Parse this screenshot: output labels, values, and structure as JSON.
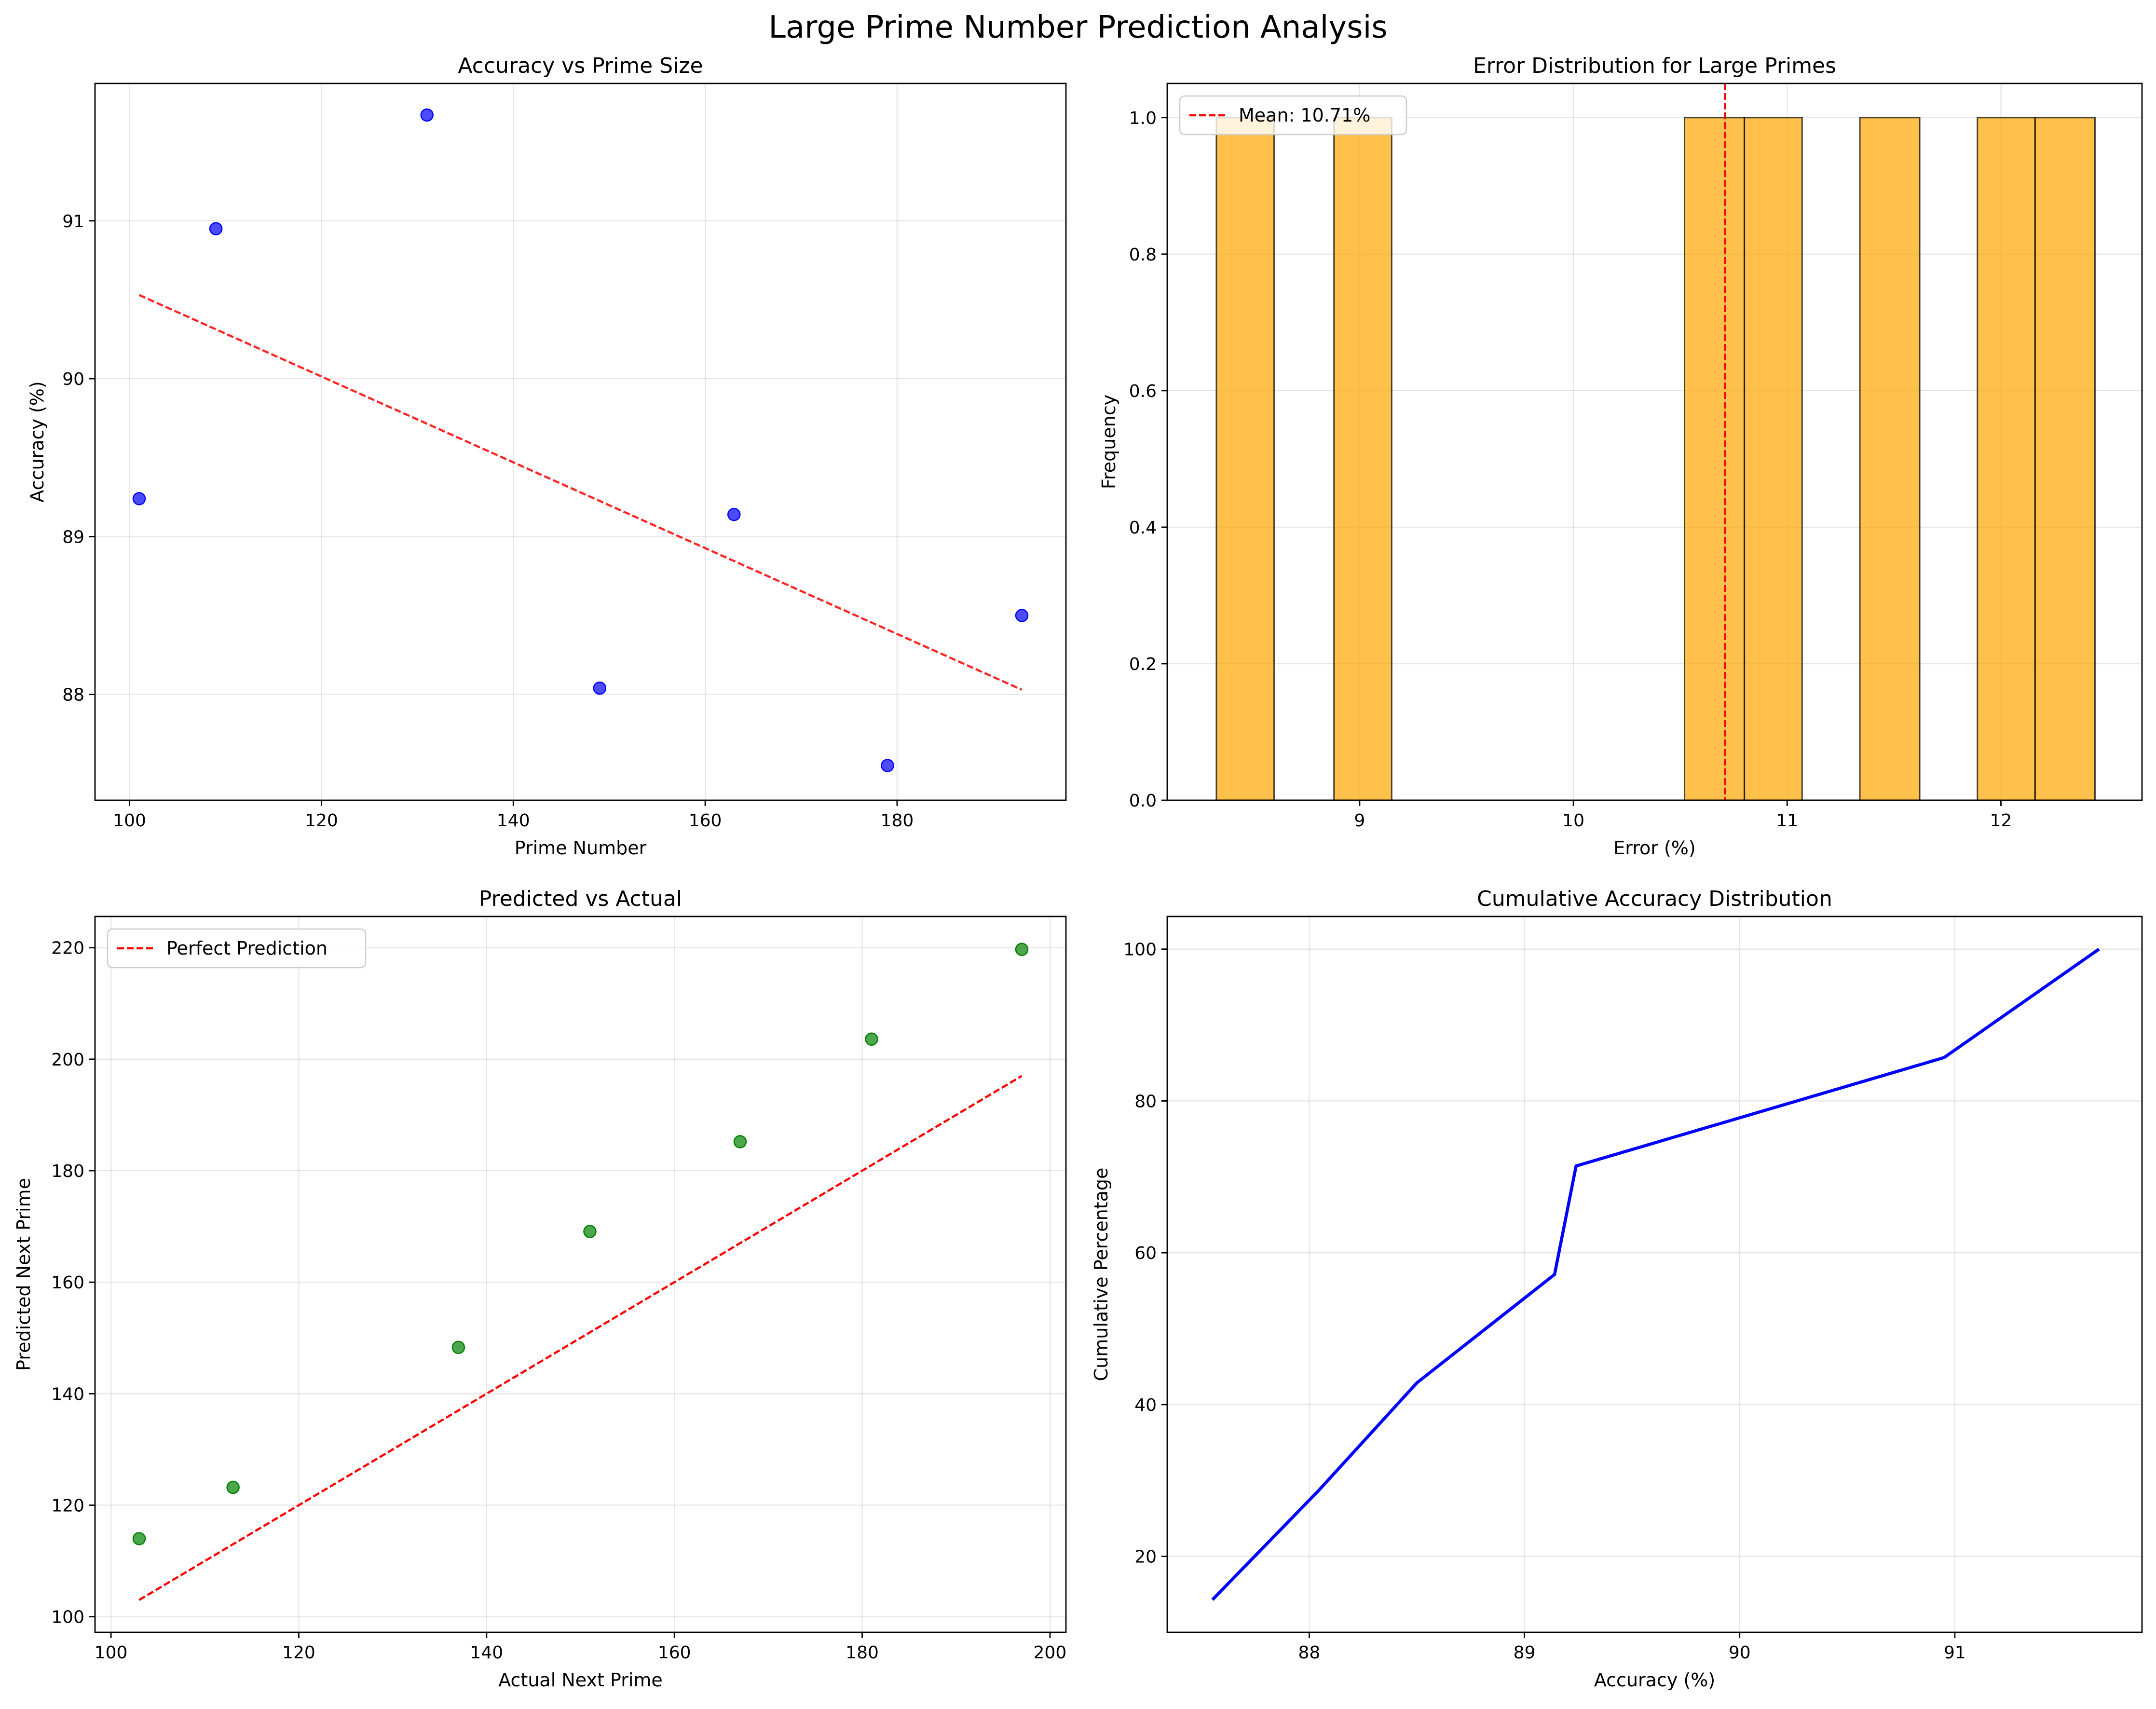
{
  "figure_title": "Large Prime Number Prediction Analysis",
  "colors": {
    "scatter_blue": "#0000ff",
    "scatter_green": "#008000",
    "trend_red": "#ff0000",
    "hist_orange": "#ffa500",
    "line_blue": "#0000ff",
    "grid": "#b0b0b0"
  },
  "chart_data": [
    {
      "id": "acc",
      "type": "scatter",
      "title": "Accuracy vs Prime Size",
      "xlabel": "Prime Number",
      "ylabel": "Accuracy (%)",
      "xlim": [
        96.4,
        197.6
      ],
      "ylim": [
        87.33,
        91.87
      ],
      "xticks": [
        100,
        120,
        140,
        160,
        180
      ],
      "yticks": [
        88,
        89,
        90,
        91
      ],
      "grid": true,
      "series": [
        {
          "kind": "points",
          "x": [
            101,
            109,
            131,
            149,
            163,
            179,
            193
          ],
          "y": [
            89.24,
            90.95,
            91.67,
            88.04,
            89.14,
            87.55,
            88.5
          ]
        },
        {
          "kind": "trend",
          "x": [
            101,
            193
          ],
          "y": [
            90.53,
            88.03
          ]
        }
      ]
    },
    {
      "id": "err",
      "type": "bar",
      "title": "Error Distribution for Large Primes",
      "xlabel": "Error (%)",
      "ylabel": "Frequency",
      "xlim": [
        8.1,
        12.66
      ],
      "ylim": [
        0,
        1.05
      ],
      "xticks": [
        9,
        10,
        11,
        12
      ],
      "yticks": [
        0.0,
        0.2,
        0.4,
        0.6,
        0.8,
        1.0
      ],
      "ytick_labels": [
        "0.0",
        "0.2",
        "0.4",
        "0.6",
        "0.8",
        "1.0"
      ],
      "grid": true,
      "bins": [
        [
          8.33,
          8.6
        ],
        [
          8.6,
          8.88
        ],
        [
          8.88,
          9.15
        ],
        [
          9.15,
          9.42
        ],
        [
          9.42,
          9.7
        ],
        [
          9.7,
          9.97
        ],
        [
          9.97,
          10.25
        ],
        [
          10.25,
          10.52
        ],
        [
          10.52,
          10.8
        ],
        [
          10.8,
          11.07
        ],
        [
          11.07,
          11.34
        ],
        [
          11.34,
          11.62
        ],
        [
          11.62,
          11.89
        ],
        [
          11.89,
          12.16
        ],
        [
          12.16,
          12.44
        ]
      ],
      "counts": [
        1,
        0,
        1,
        0,
        0,
        0,
        0,
        0,
        1,
        1,
        0,
        1,
        0,
        1,
        1
      ],
      "mean": 10.71,
      "legend": {
        "label": "Mean: 10.71%",
        "loc": "upper left"
      }
    },
    {
      "id": "pred",
      "type": "scatter",
      "title": "Predicted vs Actual",
      "xlabel": "Actual Next Prime",
      "ylabel": "Predicted Next Prime",
      "xlim": [
        98.3,
        201.7
      ],
      "ylim": [
        97.2,
        225.6
      ],
      "xticks": [
        100,
        120,
        140,
        160,
        180,
        200
      ],
      "yticks": [
        100,
        120,
        140,
        160,
        180,
        200,
        220
      ],
      "grid": true,
      "series": [
        {
          "kind": "points",
          "x": [
            103,
            113,
            137,
            151,
            167,
            181,
            197
          ],
          "y": [
            114.0,
            123.2,
            148.3,
            169.1,
            185.2,
            203.6,
            219.7
          ]
        },
        {
          "kind": "identity",
          "x": [
            103,
            197
          ],
          "y": [
            103,
            197
          ]
        }
      ],
      "legend": {
        "label": "Perfect Prediction",
        "loc": "upper left"
      }
    },
    {
      "id": "cum",
      "type": "line",
      "title": "Cumulative Accuracy Distribution",
      "xlabel": "Accuracy (%)",
      "ylabel": "Cumulative Percentage",
      "xlim": [
        87.34,
        91.87
      ],
      "ylim": [
        10.0,
        104.3
      ],
      "xticks": [
        88,
        89,
        90,
        91
      ],
      "yticks": [
        20,
        40,
        60,
        80,
        100
      ],
      "grid": true,
      "series": [
        {
          "x": [
            87.55,
            88.04,
            88.5,
            89.14,
            89.24,
            90.95,
            91.67
          ],
          "y": [
            14.29,
            28.57,
            42.86,
            57.14,
            71.43,
            85.71,
            100.0
          ]
        }
      ]
    }
  ]
}
